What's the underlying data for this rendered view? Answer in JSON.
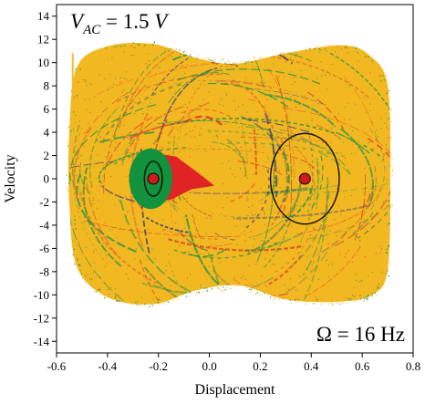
{
  "chart_data": {
    "type": "scatter",
    "title": "",
    "xlabel": "Displacement",
    "ylabel": "Velocity",
    "xlim": [
      -0.6,
      0.8
    ],
    "ylim": [
      -15,
      15
    ],
    "x_ticks": [
      "-0.6",
      "-0.4",
      "-0.2",
      "0.0",
      "0.2",
      "0.4",
      "0.6",
      "0.8"
    ],
    "y_ticks": [
      "14",
      "12",
      "10",
      "8",
      "6",
      "4",
      "2",
      "0",
      "-2",
      "-4",
      "-6",
      "-8",
      "-10",
      "-12",
      "-14"
    ],
    "annotations": {
      "voltage": {
        "symbol": "V",
        "subscript": "AC",
        "text": " = 1.5 ",
        "unit": "V"
      },
      "frequency": "Ω = 16 Hz"
    },
    "basins": [
      {
        "name": "",
        "color": "#f2b822",
        "region": "outer sea"
      },
      {
        "name": "",
        "color": "#12923c",
        "region": "left well"
      },
      {
        "name": "",
        "color": "#e02426",
        "region": "left well tail"
      }
    ],
    "attractors": [
      {
        "x": -0.22,
        "y": 0.0,
        "orbit_radius_x": 0.035,
        "orbit_radius_y": 1.5,
        "color": "#d1191b"
      },
      {
        "x": 0.375,
        "y": 0.0,
        "orbit_radius_x": 0.135,
        "orbit_radius_y": 3.9,
        "color": "#d1191b"
      }
    ],
    "grid": false,
    "legend": "none",
    "colors": {
      "yellow": "#f2b822",
      "green": "#12923c",
      "red": "#e02426",
      "navy": "#2a2f7a"
    }
  }
}
